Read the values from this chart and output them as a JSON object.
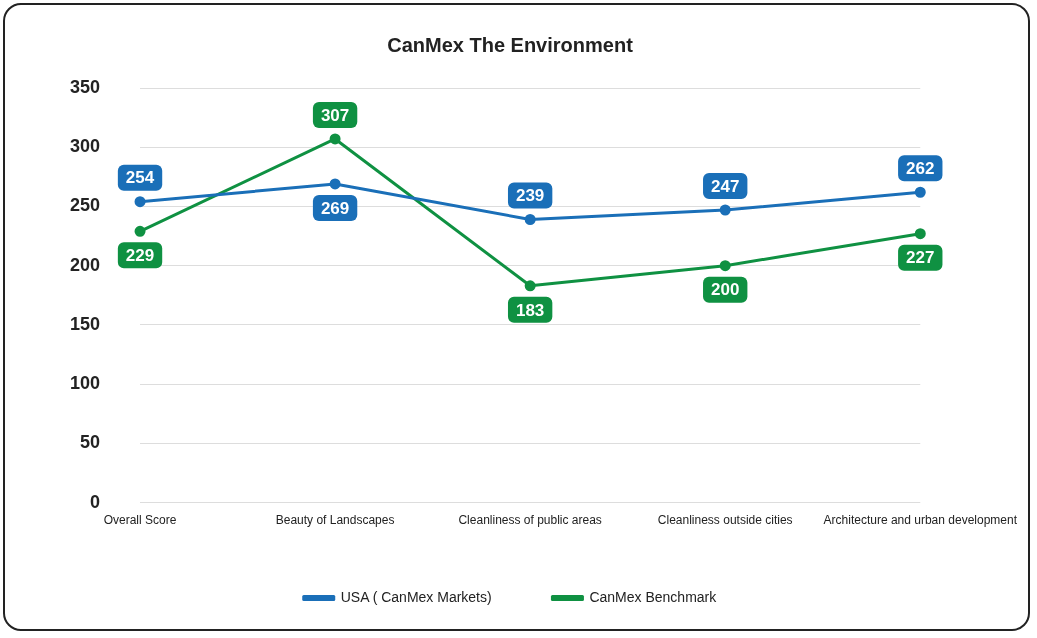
{
  "chart_data": {
    "type": "line",
    "title": "CanMex The Environment",
    "categories": [
      "Overall Score",
      "Beauty of Landscapes",
      "Cleanliness of public areas",
      "Cleanliness outside cities",
      "Architecture and urban development"
    ],
    "series": [
      {
        "name": "USA ( CanMex Markets)",
        "color": "#1a6fb8",
        "values": [
          254,
          269,
          239,
          247,
          262
        ]
      },
      {
        "name": "CanMex Benchmark",
        "color": "#0f9142",
        "values": [
          229,
          307,
          183,
          200,
          227
        ]
      }
    ],
    "ylim": [
      0,
      350
    ],
    "yticks": [
      0,
      50,
      100,
      150,
      200,
      250,
      300,
      350
    ],
    "grid": "y",
    "legend": "bottom",
    "marker": "circle",
    "line_style": "solid",
    "data_labels": true
  }
}
